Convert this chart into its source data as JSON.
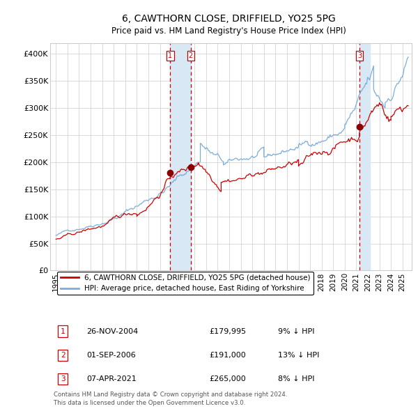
{
  "title": "6, CAWTHORN CLOSE, DRIFFIELD, YO25 5PG",
  "subtitle": "Price paid vs. HM Land Registry's House Price Index (HPI)",
  "xlim_start": 1994.5,
  "xlim_end": 2025.8,
  "ylim": [
    0,
    420000
  ],
  "yticks": [
    0,
    50000,
    100000,
    150000,
    200000,
    250000,
    300000,
    350000,
    400000
  ],
  "ytick_labels": [
    "£0",
    "£50K",
    "£100K",
    "£150K",
    "£200K",
    "£250K",
    "£300K",
    "£350K",
    "£400K"
  ],
  "sale_dates": [
    2004.9,
    2006.67,
    2021.27
  ],
  "sale_prices": [
    179995,
    191000,
    265000
  ],
  "sale_labels": [
    "1",
    "2",
    "3"
  ],
  "sale_infos": [
    "26-NOV-2004",
    "01-SEP-2006",
    "07-APR-2021"
  ],
  "sale_prices_str": [
    "£179,995",
    "£191,000",
    "£265,000"
  ],
  "sale_hpi_str": [
    "9% ↓ HPI",
    "13% ↓ HPI",
    "8% ↓ HPI"
  ],
  "hpi_color": "#7aaddd",
  "price_color": "#cc0000",
  "sale_marker_color": "#880000",
  "vline_color": "#cc0000",
  "shade_color": "#d8e8f5",
  "grid_color": "#cccccc",
  "bg_color": "#ffffff",
  "legend_entries": [
    "6, CAWTHORN CLOSE, DRIFFIELD, YO25 5PG (detached house)",
    "HPI: Average price, detached house, East Riding of Yorkshire"
  ],
  "footnote1": "Contains HM Land Registry data © Crown copyright and database right 2024.",
  "footnote2": "This data is licensed under the Open Government Licence v3.0."
}
